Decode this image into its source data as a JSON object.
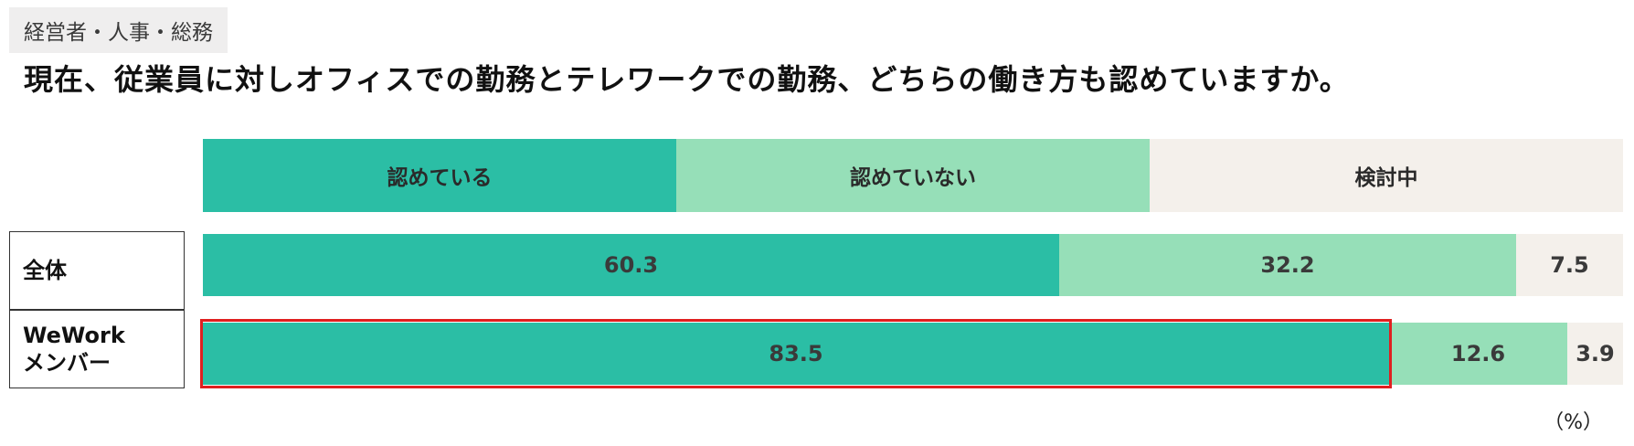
{
  "header": {
    "category_tag": "経営者・人事・総務",
    "question": "現在、従業員に対しオフィスでの勤務とテレワークでの勤務、どちらの働き方も認めていますか。"
  },
  "colors": {
    "approve": "#2bbea5",
    "not_approve": "#96dfb8",
    "considering": "#f4f0eb",
    "highlight": "#e02020"
  },
  "chart_data": {
    "type": "bar",
    "orientation": "horizontal",
    "stacked": true,
    "normalized_to": 100,
    "unit": "（%）",
    "categories": [
      "全体",
      "WeWork\nメンバー"
    ],
    "series": [
      {
        "name": "認めている",
        "values": [
          60.3,
          83.5
        ]
      },
      {
        "name": "認めていない",
        "values": [
          32.2,
          12.6
        ]
      },
      {
        "name": "検討中",
        "values": [
          7.5,
          3.9
        ]
      }
    ],
    "highlighted_segment": {
      "category": "WeWork\nメンバー",
      "series": "認めている"
    },
    "legend_position": "top",
    "grid": false
  }
}
